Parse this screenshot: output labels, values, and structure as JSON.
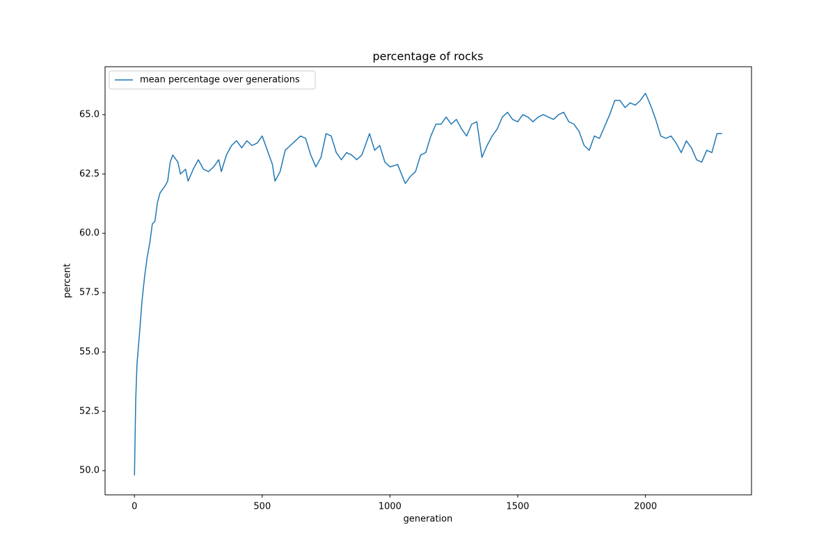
{
  "chart_data": {
    "type": "line",
    "title": "percentage of rocks",
    "x_label": "generation",
    "y_label": "percent",
    "legend": "upper left",
    "x": [
      0,
      5,
      10,
      20,
      30,
      40,
      50,
      60,
      70,
      80,
      90,
      100,
      120,
      130,
      140,
      150,
      170,
      180,
      200,
      210,
      230,
      250,
      270,
      290,
      310,
      330,
      340,
      360,
      380,
      400,
      420,
      440,
      460,
      480,
      500,
      520,
      540,
      550,
      570,
      590,
      610,
      630,
      650,
      670,
      690,
      710,
      730,
      750,
      770,
      790,
      810,
      830,
      850,
      870,
      890,
      920,
      940,
      960,
      980,
      1000,
      1030,
      1060,
      1080,
      1100,
      1120,
      1140,
      1160,
      1180,
      1200,
      1220,
      1240,
      1260,
      1280,
      1300,
      1320,
      1340,
      1360,
      1380,
      1400,
      1420,
      1440,
      1460,
      1480,
      1500,
      1520,
      1540,
      1560,
      1580,
      1600,
      1620,
      1640,
      1660,
      1680,
      1700,
      1720,
      1740,
      1760,
      1780,
      1800,
      1820,
      1840,
      1860,
      1880,
      1900,
      1920,
      1940,
      1960,
      1980,
      2000,
      2020,
      2040,
      2060,
      2080,
      2100,
      2120,
      2140,
      2160,
      2180,
      2200,
      2220,
      2240,
      2260,
      2280,
      2300
    ],
    "series": [
      {
        "name": "mean percentage over generations",
        "color": "#1f77b4",
        "values": [
          49.8,
          53,
          54.5,
          55.8,
          57.2,
          58.2,
          59.0,
          59.6,
          60.4,
          60.5,
          61.3,
          61.7,
          62.0,
          62.2,
          63.0,
          63.3,
          63.0,
          62.5,
          62.7,
          62.2,
          62.7,
          63.1,
          62.7,
          62.6,
          62.8,
          63.1,
          62.6,
          63.3,
          63.7,
          63.9,
          63.6,
          63.9,
          63.7,
          63.8,
          64.1,
          63.5,
          62.9,
          62.2,
          62.6,
          63.5,
          63.7,
          63.9,
          64.1,
          64.0,
          63.3,
          62.8,
          63.2,
          64.2,
          64.1,
          63.4,
          63.1,
          63.4,
          63.3,
          63.1,
          63.3,
          64.2,
          63.5,
          63.7,
          63.0,
          62.8,
          62.9,
          62.1,
          62.4,
          62.6,
          63.3,
          63.4,
          64.1,
          64.6,
          64.6,
          64.9,
          64.6,
          64.8,
          64.4,
          64.1,
          64.6,
          64.7,
          63.2,
          63.7,
          64.1,
          64.4,
          64.9,
          65.1,
          64.8,
          64.7,
          65.0,
          64.9,
          64.7,
          64.9,
          65.0,
          64.9,
          64.8,
          65.0,
          65.1,
          64.7,
          64.6,
          64.3,
          63.7,
          63.5,
          64.1,
          64.0,
          64.5,
          65.0,
          65.6,
          65.6,
          65.3,
          65.5,
          65.4,
          65.6,
          65.9,
          65.4,
          64.8,
          64.1,
          64.0,
          64.1,
          63.8,
          63.4,
          63.9,
          63.6,
          63.1,
          63.0,
          63.5,
          63.4,
          64.2,
          64.2
        ]
      }
    ],
    "xlim": [
      -115,
      2415
    ],
    "ylim": [
      48.98,
      67.02
    ],
    "xticks": [
      0,
      500,
      1000,
      1500,
      2000
    ],
    "yticks": [
      {
        "value": 50,
        "label": "50.0"
      },
      52.5,
      {
        "value": 55,
        "label": "55.0"
      },
      57.5,
      {
        "value": 60,
        "label": "60.0"
      },
      62.5,
      {
        "value": 65,
        "label": "65.0"
      }
    ]
  }
}
